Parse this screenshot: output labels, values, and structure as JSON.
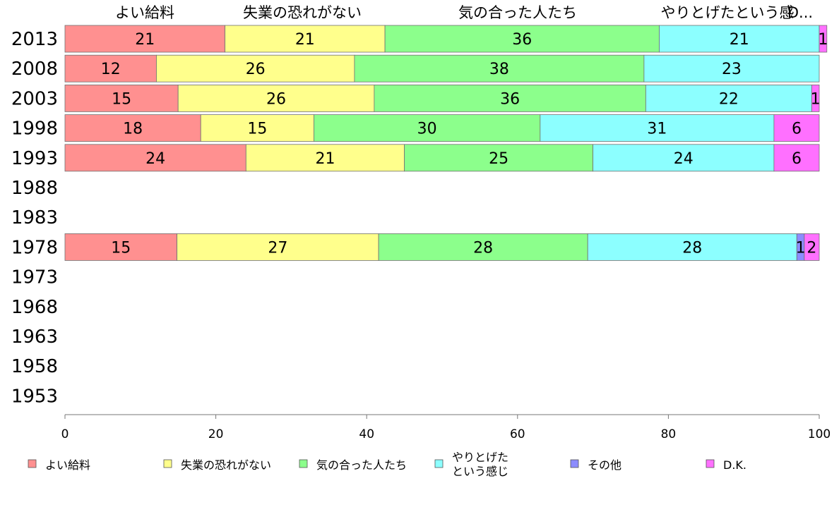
{
  "chart_data": {
    "type": "bar",
    "orientation": "horizontal",
    "stacked": true,
    "categories": [
      "2013",
      "2008",
      "2003",
      "1998",
      "1993",
      "1988",
      "1983",
      "1978",
      "1973",
      "1968",
      "1963",
      "1958",
      "1953"
    ],
    "series": [
      {
        "name": "よい給料",
        "color": "#ff9090",
        "values": [
          21,
          12,
          15,
          18,
          24,
          null,
          null,
          15,
          null,
          null,
          null,
          null,
          null
        ]
      },
      {
        "name": "失業の恐れがない",
        "color": "#ffff8c",
        "values": [
          21,
          26,
          26,
          15,
          21,
          null,
          null,
          27,
          null,
          null,
          null,
          null,
          null
        ]
      },
      {
        "name": "気の合った人たち",
        "color": "#8cff8c",
        "values": [
          36,
          38,
          36,
          30,
          25,
          null,
          null,
          28,
          null,
          null,
          null,
          null,
          null
        ]
      },
      {
        "name": "やりとげたという感じ",
        "color": "#8cffff",
        "values": [
          21,
          23,
          22,
          31,
          24,
          null,
          null,
          28,
          null,
          null,
          null,
          null,
          null
        ]
      },
      {
        "name": "その他",
        "color": "#8c8cff",
        "values": [
          0,
          0,
          0,
          0,
          0,
          null,
          null,
          1,
          null,
          null,
          null,
          null,
          null
        ]
      },
      {
        "name": "D.K.",
        "color": "#ff70ff",
        "values": [
          1,
          0,
          1,
          6,
          6,
          null,
          null,
          2,
          null,
          null,
          null,
          null,
          null
        ]
      }
    ],
    "bar_totals": [
      99,
      99,
      100,
      100,
      100,
      null,
      null,
      101,
      null,
      null,
      null,
      null,
      null
    ],
    "top_labels": [
      "よい給料",
      "失業の恐れがない",
      "気の合った人たち",
      "やりとげたという感",
      "D..."
    ],
    "legend": [
      {
        "lines": [
          "よい給料"
        ]
      },
      {
        "lines": [
          "失業の恐れがない"
        ]
      },
      {
        "lines": [
          "気の合った人たち"
        ]
      },
      {
        "lines": [
          "やりとげた",
          "という感じ"
        ]
      },
      {
        "lines": [
          "その他"
        ]
      },
      {
        "lines": [
          "D.K."
        ]
      }
    ],
    "xlim": [
      0,
      100
    ],
    "xticks": [
      0,
      20,
      40,
      60,
      80,
      100
    ],
    "grid": false,
    "legend_position": "bottom"
  }
}
